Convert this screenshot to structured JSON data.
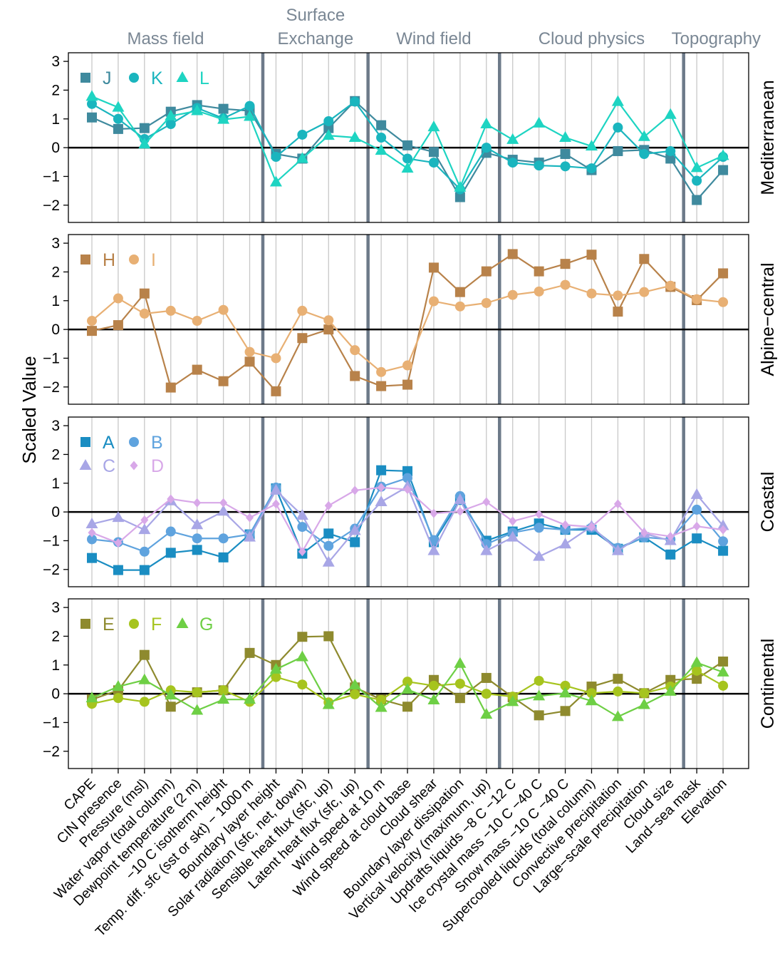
{
  "chart_data": {
    "type": "line",
    "ylabel": "Scaled Value",
    "ylim": [
      -2.6,
      3.3
    ],
    "yticks": [
      -2,
      -1,
      0,
      1,
      2,
      3
    ],
    "categories": [
      "CAPE",
      "CIN presence",
      "Pressure (msl)",
      "Water vapor (total column)",
      "Dewpoint temperature (2 m)",
      "−10 C isotherm height",
      "Temp. diff. sfc (sst or skt) − 1000 m",
      "Boundary layer height",
      "Solar radiation (sfc, net, down)",
      "Sensible heat flux (sfc, up)",
      "Latent heat flux (sfc, up)",
      "Wind speed at 10 m",
      "Wind speed at cloud base",
      "Cloud shear",
      "Boundary layer dissipation",
      "Vertical velocity (maximum, up)",
      "Updrafts liquids −8 C −12 C",
      "Ice crystal mass −10 C −40 C",
      "Snow mass −10 C −40 C",
      "Supercooled liquids (total column)",
      "Convective precipitation",
      "Large−scale precipitation",
      "Cloud size",
      "Land−sea mask",
      "Elevation"
    ],
    "groups": [
      {
        "label": "Mass field",
        "from": 0,
        "to": 6
      },
      {
        "label": "Surface\nExchange",
        "from": 7,
        "to": 10
      },
      {
        "label": "Wind field",
        "from": 11,
        "to": 15
      },
      {
        "label": "Cloud physics",
        "from": 16,
        "to": 22
      },
      {
        "label": "Topography",
        "from": 23,
        "to": 24
      }
    ],
    "separators_after": [
      6,
      10,
      15,
      22
    ],
    "panels": [
      {
        "label": "Mediterranean",
        "legend_layout": "one-row",
        "series": [
          {
            "name": "J",
            "color": "#3f8a9e",
            "marker": "square",
            "values": [
              1.05,
              0.65,
              0.68,
              1.25,
              1.48,
              1.35,
              1.28,
              -0.22,
              -0.38,
              0.68,
              1.62,
              0.78,
              0.08,
              -0.15,
              -1.72,
              -0.18,
              -0.42,
              -0.52,
              -0.22,
              -0.78,
              -0.12,
              -0.08,
              -0.38,
              -1.82,
              -0.78
            ]
          },
          {
            "name": "K",
            "color": "#1ab5be",
            "marker": "circle",
            "values": [
              1.52,
              1.0,
              0.3,
              0.82,
              1.38,
              1.02,
              1.45,
              -0.32,
              0.45,
              0.92,
              1.6,
              0.35,
              -0.38,
              -0.52,
              -1.45,
              0.0,
              -0.52,
              -0.62,
              -0.65,
              -0.72,
              0.7,
              -0.22,
              -0.12,
              -1.15,
              -0.32
            ]
          },
          {
            "name": "L",
            "color": "#1ed4c2",
            "marker": "triangle",
            "values": [
              1.78,
              1.4,
              0.12,
              1.1,
              1.28,
              0.98,
              1.08,
              -1.2,
              -0.38,
              0.42,
              0.35,
              -0.1,
              -0.72,
              0.72,
              -1.38,
              0.82,
              0.28,
              0.85,
              0.35,
              0.05,
              1.6,
              0.38,
              1.15,
              -0.7,
              -0.28
            ]
          }
        ]
      },
      {
        "label": "Alpine−central",
        "legend_layout": "one-row",
        "series": [
          {
            "name": "H",
            "color": "#b8824a",
            "marker": "square",
            "values": [
              -0.05,
              0.15,
              1.25,
              -2.02,
              -1.4,
              -1.8,
              -1.12,
              -2.15,
              -0.3,
              0.0,
              -1.62,
              -1.97,
              -1.92,
              2.15,
              1.3,
              2.02,
              2.62,
              2.02,
              2.28,
              2.6,
              0.62,
              2.45,
              1.48,
              1.02,
              1.95
            ]
          },
          {
            "name": "I",
            "color": "#e8b074",
            "marker": "circle",
            "values": [
              0.3,
              1.08,
              0.55,
              0.65,
              0.3,
              0.68,
              -0.78,
              -1.0,
              0.65,
              0.32,
              -0.72,
              -1.48,
              -1.25,
              0.98,
              0.8,
              0.92,
              1.2,
              1.32,
              1.55,
              1.25,
              1.18,
              1.3,
              1.52,
              1.05,
              0.95
            ]
          }
        ]
      },
      {
        "label": "Coastal",
        "legend_layout": "two-rows",
        "series": [
          {
            "name": "A",
            "color": "#1a8dc2",
            "marker": "square",
            "values": [
              -1.6,
              -2.02,
              -2.02,
              -1.42,
              -1.32,
              -1.58,
              -0.78,
              0.82,
              -1.45,
              -0.75,
              -1.05,
              1.45,
              1.42,
              -1.05,
              0.42,
              -1.0,
              -0.68,
              -0.4,
              -0.62,
              -0.62,
              -1.28,
              -0.88,
              -1.48,
              -0.92,
              -1.35
            ]
          },
          {
            "name": "B",
            "color": "#5fa3de",
            "marker": "circle",
            "values": [
              -0.95,
              -1.05,
              -1.38,
              -0.68,
              -0.92,
              -0.92,
              -0.78,
              0.85,
              -0.52,
              -1.18,
              -0.58,
              0.88,
              1.18,
              -0.98,
              0.55,
              -1.12,
              -0.72,
              -0.55,
              -0.62,
              -0.55,
              -1.25,
              -0.88,
              -0.95,
              0.08,
              -1.02
            ]
          },
          {
            "name": "C",
            "color": "#a8a6e6",
            "marker": "triangle",
            "values": [
              -0.42,
              -0.2,
              -0.62,
              0.38,
              -0.45,
              0.02,
              -0.88,
              0.75,
              -0.12,
              -1.75,
              -0.65,
              0.35,
              0.88,
              -1.35,
              0.42,
              -1.35,
              -0.88,
              -1.55,
              -1.12,
              -0.5,
              -1.35,
              -0.75,
              -1.0,
              0.6,
              -0.48
            ]
          },
          {
            "name": "D",
            "color": "#d8a8e8",
            "marker": "diamond",
            "values": [
              -0.72,
              -1.08,
              -0.28,
              0.45,
              0.32,
              0.32,
              -0.2,
              0.28,
              -1.38,
              0.22,
              0.75,
              0.85,
              0.78,
              -0.05,
              0.02,
              0.35,
              -0.32,
              -0.08,
              -0.45,
              -0.52,
              0.28,
              -0.72,
              -0.85,
              -0.5,
              -0.62
            ]
          }
        ]
      },
      {
        "label": "Continental",
        "legend_layout": "one-row",
        "series": [
          {
            "name": "E",
            "color": "#8e8a2e",
            "marker": "square",
            "values": [
              -0.2,
              0.12,
              1.35,
              -0.45,
              0.05,
              0.12,
              1.42,
              1.0,
              1.98,
              2.0,
              0.22,
              -0.2,
              -0.45,
              0.48,
              -0.15,
              0.55,
              -0.12,
              -0.75,
              -0.6,
              0.25,
              0.52,
              0.02,
              0.48,
              0.52,
              1.12
            ]
          },
          {
            "name": "F",
            "color": "#a6c41e",
            "marker": "circle",
            "values": [
              -0.35,
              -0.15,
              -0.28,
              0.12,
              0.05,
              0.12,
              -0.28,
              0.58,
              0.32,
              -0.3,
              -0.02,
              -0.22,
              0.42,
              0.28,
              0.35,
              0.0,
              -0.1,
              0.45,
              0.28,
              0.02,
              0.08,
              0.02,
              0.25,
              0.8,
              0.28
            ]
          },
          {
            "name": "G",
            "color": "#6ecf45",
            "marker": "triangle",
            "values": [
              -0.15,
              0.25,
              0.48,
              -0.05,
              -0.58,
              -0.2,
              -0.2,
              0.85,
              1.28,
              -0.38,
              0.3,
              -0.48,
              0.15,
              -0.22,
              1.05,
              -0.72,
              -0.28,
              -0.08,
              0.02,
              -0.25,
              -0.8,
              -0.38,
              0.08,
              1.08,
              0.75
            ]
          }
        ]
      }
    ]
  }
}
